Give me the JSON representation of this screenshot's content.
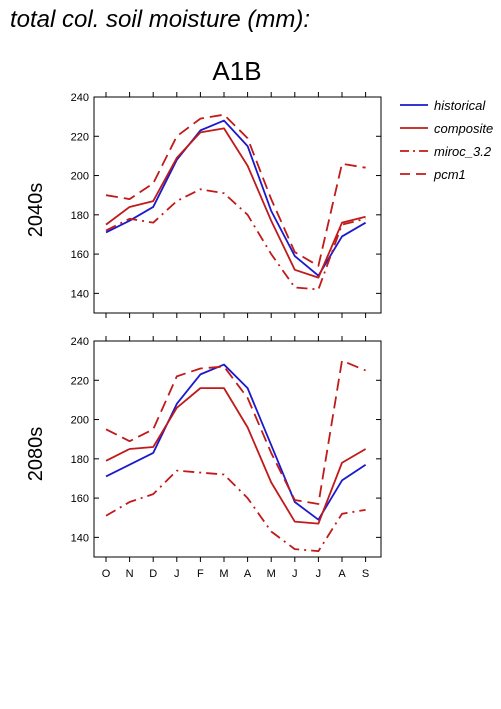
{
  "page_title": "total col. soil moisture (mm):",
  "chart_data": {
    "type": "line",
    "title": "A1B",
    "categories": [
      "O",
      "N",
      "D",
      "J",
      "F",
      "M",
      "A",
      "M",
      "J",
      "J",
      "A",
      "S"
    ],
    "colors": {
      "historical": "#1a1acc",
      "composite": "#c01a1a",
      "miroc_3.2": "#c01a1a",
      "pcm1": "#c01a1a"
    },
    "legend": [
      {
        "key": "historical",
        "label": "historical",
        "style": "solid",
        "color": "#1a1acc"
      },
      {
        "key": "composite",
        "label": "composite",
        "style": "solid",
        "color": "#c01a1a"
      },
      {
        "key": "miroc_3.2",
        "label": "miroc_3.2",
        "style": "dashdot",
        "color": "#c01a1a"
      },
      {
        "key": "pcm1",
        "label": "pcm1",
        "style": "dash",
        "color": "#c01a1a"
      }
    ],
    "panels": [
      {
        "label": "2040s",
        "ylim": [
          130,
          240
        ],
        "yticks": [
          140,
          160,
          180,
          200,
          220,
          240
        ],
        "series": [
          {
            "name": "historical",
            "values": [
              171,
              177,
              184,
              208,
              223,
              228,
              215,
              182,
              159,
              149,
              169,
              176
            ]
          },
          {
            "name": "composite",
            "values": [
              175,
              184,
              187,
              209,
              222,
              224,
              205,
              177,
              152,
              148,
              176,
              179
            ]
          },
          {
            "name": "miroc_3.2",
            "values": [
              172,
              178,
              176,
              187,
              193,
              191,
              180,
              160,
              143,
              142,
              175,
              178
            ]
          },
          {
            "name": "pcm1",
            "values": [
              190,
              188,
              196,
              220,
              229,
              231,
              219,
              188,
              161,
              154,
              206,
              204
            ]
          }
        ]
      },
      {
        "label": "2080s",
        "ylim": [
          130,
          240
        ],
        "yticks": [
          140,
          160,
          180,
          200,
          220,
          240
        ],
        "series": [
          {
            "name": "historical",
            "values": [
              171,
              177,
              183,
              208,
              223,
              228,
              216,
              187,
              158,
              149,
              169,
              177
            ]
          },
          {
            "name": "composite",
            "values": [
              179,
              185,
              186,
              206,
              216,
              216,
              196,
              168,
              148,
              147,
              178,
              185
            ]
          },
          {
            "name": "miroc_3.2",
            "values": [
              151,
              158,
              162,
              174,
              173,
              172,
              160,
              143,
              134,
              133,
              152,
              154
            ]
          },
          {
            "name": "pcm1",
            "values": [
              195,
              189,
              195,
              222,
              226,
              227,
              211,
              183,
              159,
              157,
              230,
              225
            ]
          }
        ]
      }
    ]
  }
}
